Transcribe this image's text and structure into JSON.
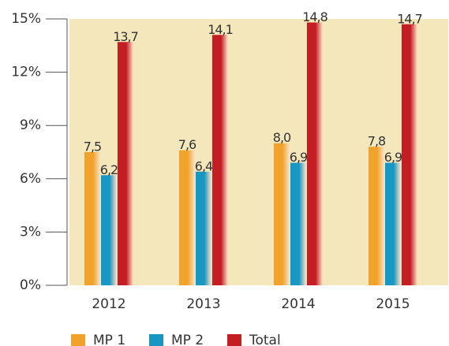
{
  "chart_data": {
    "type": "bar",
    "categories": [
      "2012",
      "2013",
      "2014",
      "2015"
    ],
    "series": [
      {
        "name": "MP 1",
        "color": "#f0a22a",
        "values": [
          7.5,
          7.6,
          8.0,
          7.8
        ],
        "value_labels": [
          "7,5",
          "7,6",
          "8,0",
          "7,8"
        ]
      },
      {
        "name": "MP 2",
        "color": "#1797c2",
        "values": [
          6.2,
          6.4,
          6.9,
          6.9
        ],
        "value_labels": [
          "6,2",
          "6,4",
          "6,9",
          "6,9"
        ]
      },
      {
        "name": "Total",
        "color": "#c51d24",
        "values": [
          13.7,
          14.1,
          14.8,
          14.7
        ],
        "value_labels": [
          "13,7",
          "14,1",
          "14,8",
          "14,7"
        ]
      }
    ],
    "ylim": [
      0,
      15
    ],
    "yticks": [
      {
        "value": 0,
        "label": "0%"
      },
      {
        "value": 3,
        "label": "3%"
      },
      {
        "value": 6,
        "label": "6%"
      },
      {
        "value": 9,
        "label": "9%"
      },
      {
        "value": 12,
        "label": "12%"
      },
      {
        "value": 15,
        "label": "15%"
      }
    ],
    "background": "#f4e7bb"
  }
}
